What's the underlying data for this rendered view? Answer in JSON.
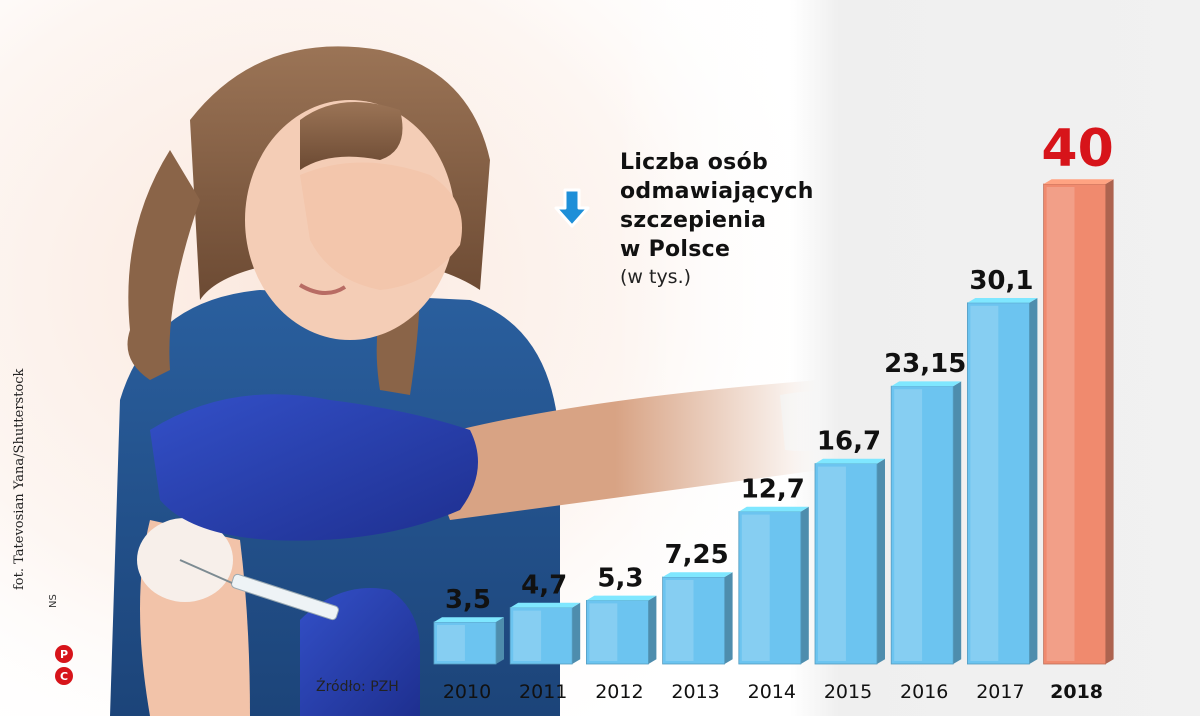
{
  "header": {
    "title_lines": [
      "Liczba osób",
      "odmawiających",
      "szczepienia",
      "w Polsce"
    ],
    "unit": "(w tys.)"
  },
  "credit": "fot. Tatevosian Yana/Shutterstock",
  "agency": "NS",
  "source": "Źródło: PZH",
  "colors": {
    "bar_blue": "#6cc4f0",
    "bar_highlight": "#f08a6e",
    "highlight_text": "#d7141a",
    "text": "#111111"
  },
  "icons": [
    "down-arrow-icon",
    "copyright-logo-icon"
  ],
  "chart_data": {
    "type": "bar",
    "title": "Liczba osób odmawiających szczepienia w Polsce",
    "ylabel": "(w tys.)",
    "categories": [
      "2010",
      "2011",
      "2012",
      "2013",
      "2014",
      "2015",
      "2016",
      "2017",
      "2018"
    ],
    "values": [
      3.5,
      4.7,
      5.3,
      7.25,
      12.7,
      16.7,
      23.15,
      30.1,
      40
    ],
    "value_labels": [
      "3,5",
      "4,7",
      "5,3",
      "7,25",
      "12,7",
      "16,7",
      "23,15",
      "30,1",
      "40"
    ],
    "highlight_index": 8,
    "ylim": [
      0,
      40
    ],
    "grid": false,
    "legend": "none"
  }
}
